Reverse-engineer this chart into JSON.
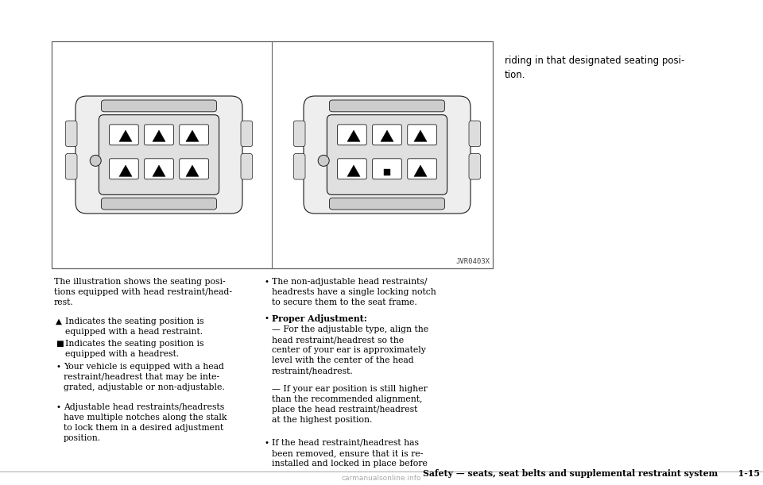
{
  "bg_color": "#ffffff",
  "text_color": "#000000",
  "fig_width": 9.6,
  "fig_height": 6.11,
  "code_label": "JVR0403X",
  "right_col_text": "riding in that designated seating posi-\ntion.",
  "left_para1": "The illustration shows the seating posi-\ntions equipped with head restraint/head-\nrest.",
  "left_para2_sym": "▲",
  "left_para3_sym": "■",
  "left_para2_text": "  Indicates the seating position is\nequipped with a head restraint.",
  "left_para3_text": "  Indicates the seating position is\nequipped with a headrest.",
  "left_bullet1": "Your vehicle is equipped with a head\nrestraint/headrest that may be inte-\ngrated, adjustable or non-adjustable.",
  "left_bullet2": "Adjustable head restraints/headrests\nhave multiple notches along the stalk\nto lock them in a desired adjustment\nposition.",
  "right_bullet1": "The non-adjustable head restraints/\nheadrests have a single locking notch\nto secure them to the seat frame.",
  "right_bullet2_bold": "Proper Adjustment:",
  "right_sub1": "For the adjustable type, align the\nhead restraint/headrest so the\ncenter of your ear is approximately\nlevel with the center of the head\nrestraint/headrest.",
  "right_sub2": "If your ear position is still higher\nthan the recommended alignment,\nplace the head restraint/headrest\nat the highest position.",
  "right_bullet3": "If the head restraint/headrest has\nbeen removed, ensure that it is re-\ninstalled and locked in place before",
  "footer_text": "Safety — seats, seat belts and supplemental restraint system   1-15"
}
